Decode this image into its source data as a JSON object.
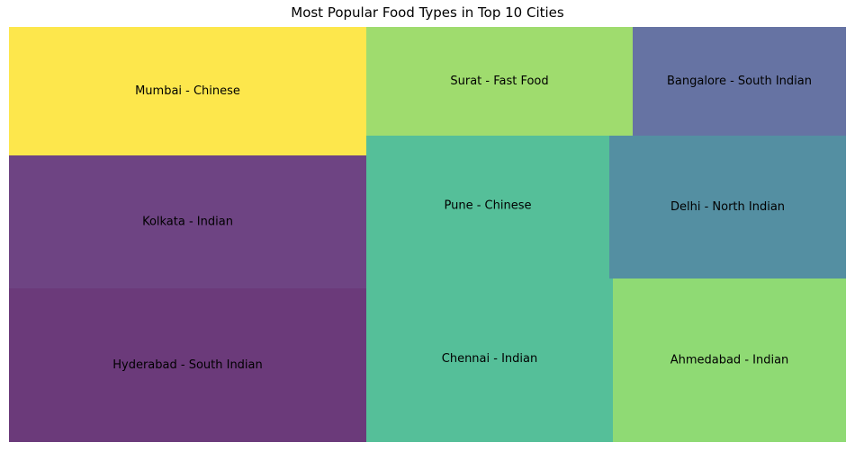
{
  "chart_data": {
    "type": "treemap",
    "title": "Most Popular Food Types in Top 10 Cities",
    "xlabel": "",
    "ylabel": "",
    "grid": false,
    "legend": "none",
    "items": [
      {
        "label": "Hyderabad - South Indian",
        "color": "#6b3a7a"
      },
      {
        "label": "Kolkata - Indian",
        "color": "#6e4483"
      },
      {
        "label": "Mumbai - Chinese",
        "color": "#fde74c"
      },
      {
        "label": "Chennai - Indian",
        "color": "#55bf99"
      },
      {
        "label": "Pune - Chinese",
        "color": "#55bf99"
      },
      {
        "label": "Surat - Fast Food",
        "color": "#9fdc6e"
      },
      {
        "label": "Ahmedabad - Indian",
        "color": "#8fda74"
      },
      {
        "label": "Delhi - North Indian",
        "color": "#548fa2"
      },
      {
        "label": "Bangalore - South Indian",
        "color": "#6673a3"
      }
    ]
  }
}
